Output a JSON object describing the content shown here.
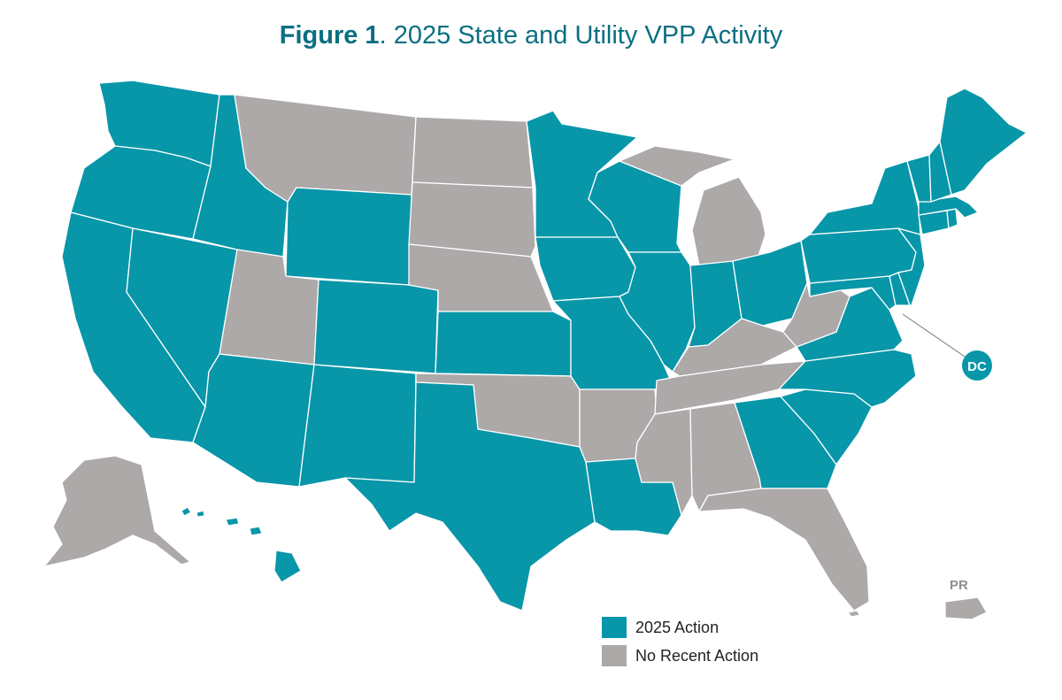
{
  "title": {
    "bold": "Figure 1",
    "rest": ". 2025 State and Utility VPP Activity"
  },
  "colors": {
    "action": "#0896a9",
    "no_action": "#aca9a8",
    "title": "#0b6f82",
    "border": "#ffffff"
  },
  "legend": [
    {
      "label": "2025 Action",
      "status": "action"
    },
    {
      "label": "No Recent Action",
      "status": "no_action"
    }
  ],
  "callouts": {
    "dc": "DC",
    "pr": "PR"
  },
  "states": [
    {
      "id": "WA",
      "status": "action"
    },
    {
      "id": "OR",
      "status": "action"
    },
    {
      "id": "CA",
      "status": "action"
    },
    {
      "id": "NV",
      "status": "action"
    },
    {
      "id": "ID",
      "status": "action"
    },
    {
      "id": "MT",
      "status": "no_action"
    },
    {
      "id": "WY",
      "status": "action"
    },
    {
      "id": "UT",
      "status": "no_action"
    },
    {
      "id": "AZ",
      "status": "action"
    },
    {
      "id": "CO",
      "status": "action"
    },
    {
      "id": "NM",
      "status": "action"
    },
    {
      "id": "ND",
      "status": "no_action"
    },
    {
      "id": "SD",
      "status": "no_action"
    },
    {
      "id": "NE",
      "status": "no_action"
    },
    {
      "id": "KS",
      "status": "action"
    },
    {
      "id": "OK",
      "status": "no_action"
    },
    {
      "id": "TX",
      "status": "action"
    },
    {
      "id": "MN",
      "status": "action"
    },
    {
      "id": "IA",
      "status": "action"
    },
    {
      "id": "MO",
      "status": "action"
    },
    {
      "id": "AR",
      "status": "no_action"
    },
    {
      "id": "LA",
      "status": "action"
    },
    {
      "id": "WI",
      "status": "action"
    },
    {
      "id": "IL",
      "status": "action"
    },
    {
      "id": "MI",
      "status": "no_action"
    },
    {
      "id": "IN",
      "status": "action"
    },
    {
      "id": "OH",
      "status": "action"
    },
    {
      "id": "KY",
      "status": "no_action"
    },
    {
      "id": "TN",
      "status": "no_action"
    },
    {
      "id": "MS",
      "status": "no_action"
    },
    {
      "id": "AL",
      "status": "no_action"
    },
    {
      "id": "GA",
      "status": "action"
    },
    {
      "id": "FL",
      "status": "no_action"
    },
    {
      "id": "SC",
      "status": "action"
    },
    {
      "id": "NC",
      "status": "action"
    },
    {
      "id": "VA",
      "status": "action"
    },
    {
      "id": "WV",
      "status": "no_action"
    },
    {
      "id": "MD",
      "status": "action"
    },
    {
      "id": "DE",
      "status": "action"
    },
    {
      "id": "PA",
      "status": "action"
    },
    {
      "id": "NJ",
      "status": "action"
    },
    {
      "id": "NY",
      "status": "action"
    },
    {
      "id": "CT",
      "status": "action"
    },
    {
      "id": "RI",
      "status": "action"
    },
    {
      "id": "MA",
      "status": "action"
    },
    {
      "id": "VT",
      "status": "action"
    },
    {
      "id": "NH",
      "status": "action"
    },
    {
      "id": "ME",
      "status": "action"
    },
    {
      "id": "AK",
      "status": "no_action"
    },
    {
      "id": "HI",
      "status": "action"
    },
    {
      "id": "DC",
      "status": "action"
    },
    {
      "id": "PR",
      "status": "no_action"
    }
  ]
}
